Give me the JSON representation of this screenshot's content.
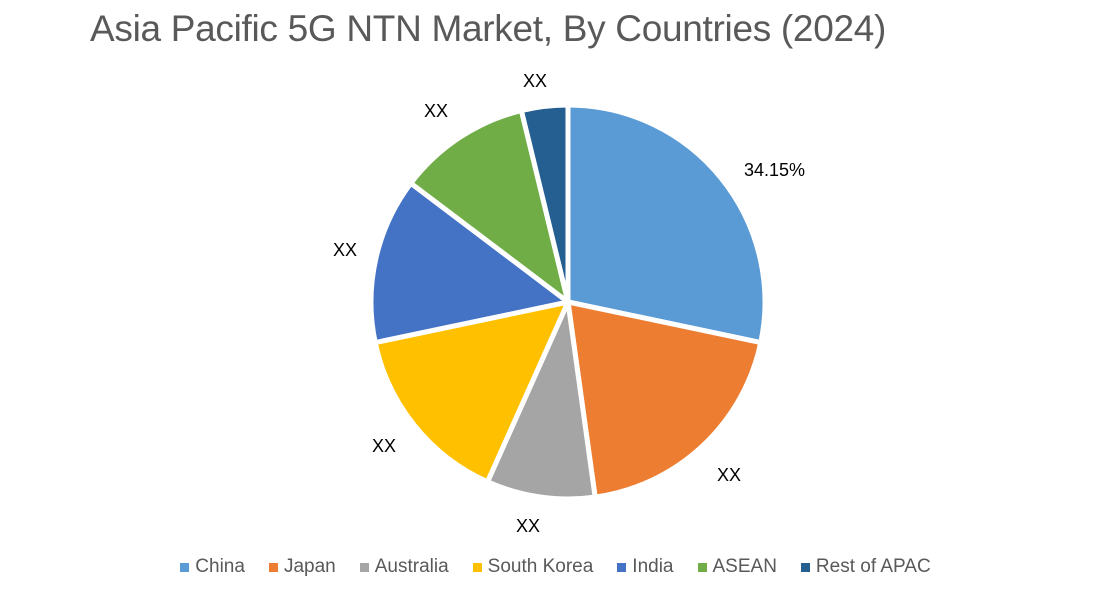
{
  "chart_data": {
    "type": "pie",
    "title": "Asia Pacific 5G NTN Market, By Countries (2024)",
    "categories": [
      "China",
      "Japan",
      "Australia",
      "South Korea",
      "India",
      "ASEAN",
      "Rest of APAC"
    ],
    "values": [
      34.15,
      19.5,
      8.9,
      15.0,
      13.6,
      10.9,
      3.8
    ],
    "data_labels": [
      "34.15%",
      "XX",
      "XX",
      "XX",
      "XX",
      "XX",
      "XX"
    ],
    "colors": [
      "#5B9BD5",
      "#ED7D31",
      "#A5A5A5",
      "#FFC000",
      "#4472C4",
      "#70AD47",
      "#255E91"
    ],
    "legend_position": "bottom",
    "start_angle": 0,
    "direction": "clockwise"
  },
  "title": "Asia Pacific 5G NTN Market, By Countries (2024)",
  "legend": [
    {
      "label": "China",
      "color": "#5B9BD5"
    },
    {
      "label": "Japan",
      "color": "#ED7D31"
    },
    {
      "label": "Australia",
      "color": "#A5A5A5"
    },
    {
      "label": "South Korea",
      "color": "#FFC000"
    },
    {
      "label": "India",
      "color": "#4472C4"
    },
    {
      "label": "ASEAN",
      "color": "#70AD47"
    },
    {
      "label": "Rest of APAC",
      "color": "#255E91"
    }
  ],
  "labels": {
    "china": "34.15%",
    "japan": "XX",
    "australia": "XX",
    "south_korea": "XX",
    "india": "XX",
    "asean": "XX",
    "rest": "XX"
  }
}
